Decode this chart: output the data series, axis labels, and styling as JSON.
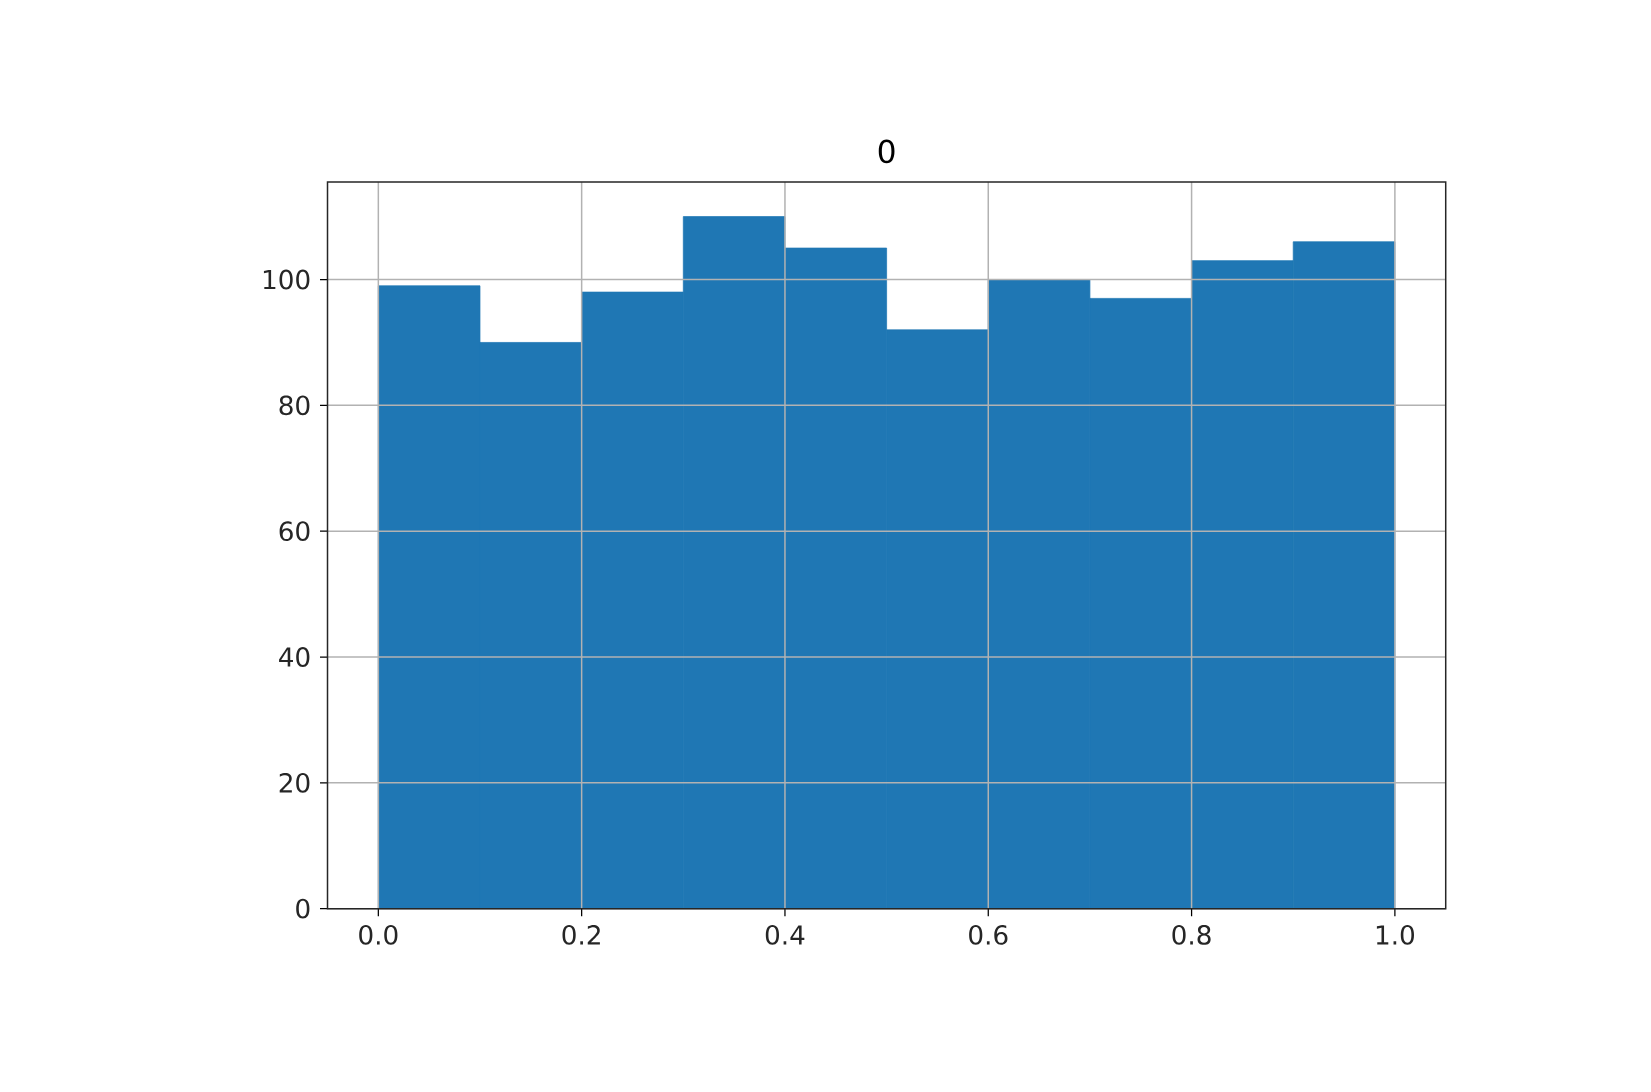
{
  "chart_data": {
    "type": "histogram",
    "title": "0",
    "bins": [
      0.0,
      0.1,
      0.2,
      0.3,
      0.4,
      0.5,
      0.6,
      0.7,
      0.8,
      0.9,
      1.0
    ],
    "values": [
      99,
      90,
      98,
      110,
      105,
      92,
      100,
      97,
      103,
      106
    ],
    "color": "#1f77b4",
    "xlim": [
      -0.05,
      1.05
    ],
    "ylim": [
      0,
      115.5
    ],
    "xticks": [
      {
        "value": 0.0,
        "label": "0.0"
      },
      0.2,
      0.4,
      0.6,
      0.8,
      {
        "value": 1.0,
        "label": "1.0"
      }
    ],
    "yticks": [
      0,
      20,
      40,
      60,
      80,
      100
    ],
    "grid": true
  }
}
